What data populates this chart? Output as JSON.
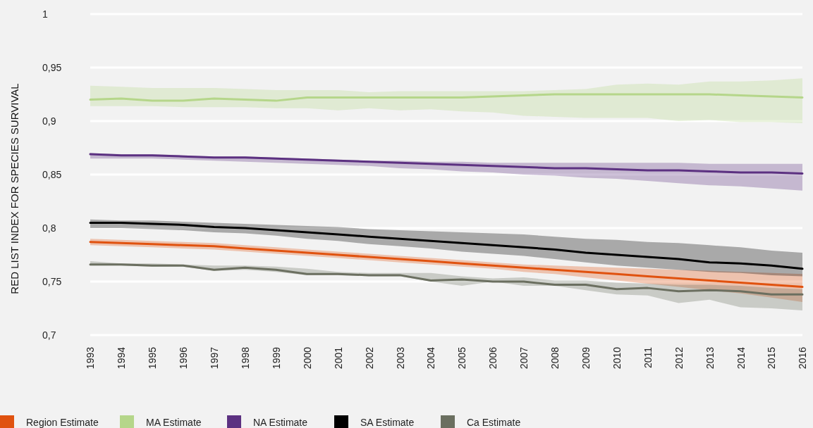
{
  "chart_data": {
    "type": "line",
    "ylabel": "RED LIST INDEX FOR SPECIES SURVIVAL",
    "x": [
      1993,
      1994,
      1995,
      1996,
      1997,
      1998,
      1999,
      2000,
      2001,
      2002,
      2003,
      2004,
      2005,
      2006,
      2007,
      2008,
      2009,
      2010,
      2011,
      2012,
      2013,
      2014,
      2015,
      2016
    ],
    "xlim": [
      1993,
      2016
    ],
    "xticks": [
      1993,
      1994,
      1995,
      1996,
      1997,
      1998,
      1999,
      2000,
      2001,
      2002,
      2003,
      2004,
      2005,
      2006,
      2007,
      2008,
      2009,
      2010,
      2011,
      2012,
      2013,
      2014,
      2015,
      2016
    ],
    "ylim": [
      0.7,
      1
    ],
    "yticks": [
      {
        "value": 0.7,
        "label": "0,7"
      },
      {
        "value": 0.75,
        "label": "0,75"
      },
      {
        "value": 0.8,
        "label": "0,8"
      },
      {
        "value": 0.85,
        "label": "0,85"
      },
      {
        "value": 0.9,
        "label": "0,9"
      },
      {
        "value": 0.95,
        "label": "0,95"
      },
      1
    ],
    "grid": "y",
    "legend": "bottom",
    "marker": "none",
    "line_style": "solid",
    "series": [
      {
        "name": "Region Estimate",
        "color": "#e0520f",
        "values": [
          0.787,
          0.786,
          0.785,
          0.784,
          0.783,
          0.781,
          0.779,
          0.777,
          0.775,
          0.773,
          0.771,
          0.769,
          0.767,
          0.765,
          0.763,
          0.761,
          0.759,
          0.757,
          0.755,
          0.753,
          0.751,
          0.749,
          0.747,
          0.745
        ],
        "lower": [
          0.784,
          0.783,
          0.782,
          0.781,
          0.78,
          0.778,
          0.776,
          0.774,
          0.772,
          0.77,
          0.768,
          0.766,
          0.764,
          0.762,
          0.759,
          0.757,
          0.754,
          0.751,
          0.748,
          0.745,
          0.742,
          0.739,
          0.735,
          0.731
        ],
        "upper": [
          0.79,
          0.789,
          0.788,
          0.787,
          0.786,
          0.784,
          0.782,
          0.78,
          0.778,
          0.776,
          0.774,
          0.772,
          0.77,
          0.768,
          0.766,
          0.765,
          0.764,
          0.763,
          0.762,
          0.761,
          0.76,
          0.759,
          0.758,
          0.757
        ]
      },
      {
        "name": "MA Estimate",
        "color": "#b5d68a",
        "values": [
          0.92,
          0.921,
          0.919,
          0.919,
          0.921,
          0.92,
          0.919,
          0.922,
          0.922,
          0.922,
          0.922,
          0.922,
          0.922,
          0.923,
          0.924,
          0.925,
          0.925,
          0.925,
          0.925,
          0.925,
          0.925,
          0.924,
          0.923,
          0.922
        ],
        "lower": [
          0.914,
          0.914,
          0.914,
          0.913,
          0.913,
          0.913,
          0.912,
          0.912,
          0.91,
          0.912,
          0.91,
          0.911,
          0.909,
          0.908,
          0.905,
          0.904,
          0.903,
          0.903,
          0.903,
          0.9,
          0.901,
          0.899,
          0.899,
          0.898
        ],
        "upper": [
          0.933,
          0.932,
          0.931,
          0.931,
          0.931,
          0.93,
          0.929,
          0.929,
          0.929,
          0.927,
          0.928,
          0.928,
          0.928,
          0.928,
          0.928,
          0.929,
          0.93,
          0.934,
          0.935,
          0.934,
          0.937,
          0.937,
          0.938,
          0.94
        ]
      },
      {
        "name": "NA Estimate",
        "color": "#5c3181",
        "values": [
          0.869,
          0.868,
          0.868,
          0.867,
          0.866,
          0.866,
          0.865,
          0.864,
          0.863,
          0.862,
          0.861,
          0.86,
          0.859,
          0.858,
          0.857,
          0.856,
          0.856,
          0.855,
          0.854,
          0.854,
          0.853,
          0.852,
          0.852,
          0.851
        ],
        "lower": [
          0.865,
          0.865,
          0.865,
          0.864,
          0.863,
          0.862,
          0.861,
          0.86,
          0.859,
          0.858,
          0.856,
          0.855,
          0.853,
          0.852,
          0.85,
          0.849,
          0.847,
          0.846,
          0.844,
          0.842,
          0.84,
          0.839,
          0.837,
          0.835
        ],
        "upper": [
          0.87,
          0.869,
          0.869,
          0.868,
          0.867,
          0.867,
          0.866,
          0.865,
          0.864,
          0.863,
          0.863,
          0.862,
          0.862,
          0.861,
          0.861,
          0.861,
          0.861,
          0.861,
          0.861,
          0.861,
          0.86,
          0.86,
          0.86,
          0.86
        ]
      },
      {
        "name": "SA Estimate",
        "color": "#000000",
        "values": [
          0.805,
          0.805,
          0.804,
          0.803,
          0.801,
          0.8,
          0.798,
          0.796,
          0.794,
          0.792,
          0.79,
          0.788,
          0.786,
          0.784,
          0.782,
          0.78,
          0.777,
          0.775,
          0.773,
          0.771,
          0.768,
          0.767,
          0.765,
          0.762
        ],
        "lower": [
          0.8,
          0.8,
          0.799,
          0.798,
          0.796,
          0.795,
          0.793,
          0.79,
          0.788,
          0.785,
          0.783,
          0.781,
          0.778,
          0.776,
          0.774,
          0.771,
          0.768,
          0.765,
          0.763,
          0.761,
          0.759,
          0.758,
          0.756,
          0.755
        ],
        "upper": [
          0.808,
          0.807,
          0.807,
          0.806,
          0.805,
          0.804,
          0.803,
          0.802,
          0.801,
          0.799,
          0.798,
          0.797,
          0.796,
          0.795,
          0.794,
          0.792,
          0.79,
          0.789,
          0.787,
          0.786,
          0.784,
          0.782,
          0.779,
          0.777
        ]
      },
      {
        "name": "Ca Estimate",
        "color": "#6b6f60",
        "values": [
          0.766,
          0.766,
          0.765,
          0.765,
          0.761,
          0.763,
          0.761,
          0.757,
          0.757,
          0.756,
          0.756,
          0.751,
          0.752,
          0.75,
          0.75,
          0.747,
          0.747,
          0.743,
          0.744,
          0.741,
          0.742,
          0.741,
          0.738,
          0.738
        ],
        "lower": [
          0.765,
          0.765,
          0.764,
          0.764,
          0.76,
          0.761,
          0.759,
          0.756,
          0.756,
          0.755,
          0.755,
          0.75,
          0.746,
          0.75,
          0.746,
          0.746,
          0.742,
          0.738,
          0.737,
          0.73,
          0.733,
          0.726,
          0.725,
          0.723
        ],
        "upper": [
          0.769,
          0.767,
          0.767,
          0.766,
          0.765,
          0.765,
          0.764,
          0.762,
          0.759,
          0.758,
          0.758,
          0.758,
          0.755,
          0.753,
          0.754,
          0.751,
          0.751,
          0.749,
          0.748,
          0.747,
          0.747,
          0.746,
          0.744,
          0.743
        ]
      }
    ]
  }
}
